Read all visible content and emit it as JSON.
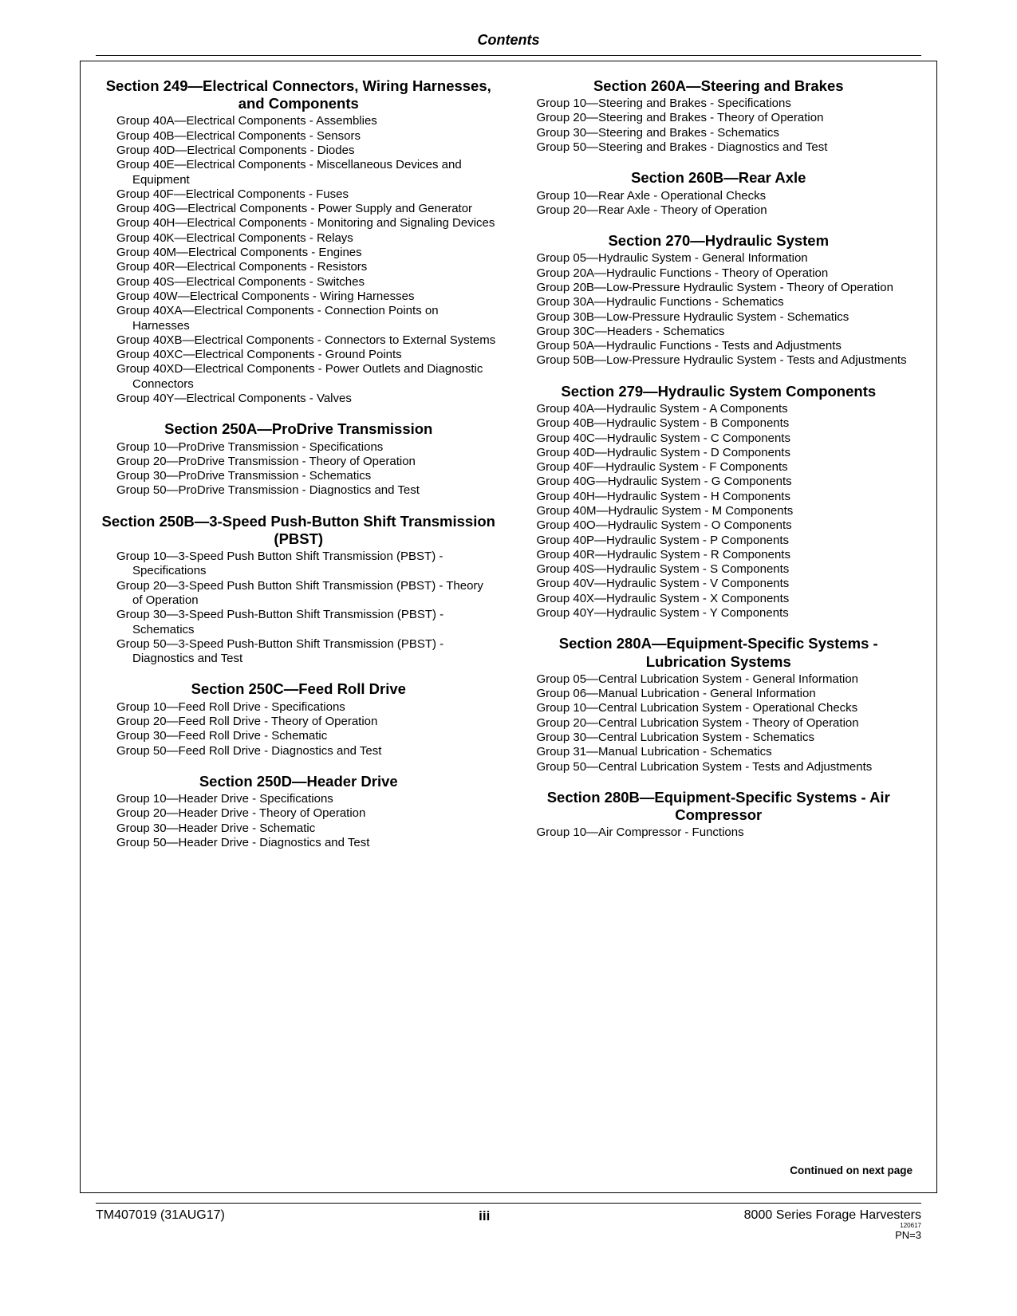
{
  "header": "Contents",
  "continued": "Continued on next page",
  "footer": {
    "left": "TM407019 (31AUG17)",
    "center": "iii",
    "right_main": "8000 Series Forage Harvesters",
    "right_tiny": "120617",
    "right_pn": "PN=3"
  },
  "left_sections": [
    {
      "title": "Section 249—Electrical Connectors, Wiring Harnesses, and Components",
      "groups": [
        "Group 40A—Electrical Components - Assemblies",
        "Group 40B—Electrical Components - Sensors",
        "Group 40D—Electrical Components - Diodes",
        "Group 40E—Electrical Components - Miscellaneous Devices and Equipment",
        "Group 40F—Electrical Components - Fuses",
        "Group 40G—Electrical Components - Power Supply and Generator",
        "Group 40H—Electrical Components - Monitoring and Signaling Devices",
        "Group 40K—Electrical Components - Relays",
        "Group 40M—Electrical Components - Engines",
        "Group 40R—Electrical Components - Resistors",
        "Group 40S—Electrical Components - Switches",
        "Group 40W—Electrical Components - Wiring Harnesses",
        "Group 40XA—Electrical Components - Connection Points on Harnesses",
        "Group 40XB—Electrical Components - Connectors to External Systems",
        "Group 40XC—Electrical Components - Ground Points",
        "Group 40XD—Electrical Components - Power Outlets and Diagnostic Connectors",
        "Group 40Y—Electrical Components - Valves"
      ]
    },
    {
      "title": "Section 250A—ProDrive Transmission",
      "groups": [
        "Group 10—ProDrive Transmission - Specifications",
        "Group 20—ProDrive Transmission - Theory of Operation",
        "Group 30—ProDrive Transmission - Schematics",
        "Group 50—ProDrive Transmission - Diagnostics and Test"
      ]
    },
    {
      "title": "Section 250B—3-Speed Push-Button Shift Transmission (PBST)",
      "groups": [
        "Group 10—3-Speed Push Button Shift Transmission (PBST) - Specifications",
        "Group 20—3-Speed Push Button Shift Transmission (PBST) - Theory of Operation",
        "Group 30—3-Speed Push-Button Shift Transmission (PBST) - Schematics",
        "Group 50—3-Speed Push-Button Shift Transmission (PBST) - Diagnostics and Test"
      ]
    },
    {
      "title": "Section 250C—Feed Roll Drive",
      "groups": [
        "Group 10—Feed Roll Drive - Specifications",
        "Group 20—Feed Roll Drive - Theory of Operation",
        "Group 30—Feed Roll Drive - Schematic",
        "Group 50—Feed Roll Drive - Diagnostics and Test"
      ]
    },
    {
      "title": "Section 250D—Header Drive",
      "groups": [
        "Group 10—Header Drive - Specifications",
        "Group 20—Header Drive - Theory of Operation",
        "Group 30—Header Drive - Schematic",
        "Group 50—Header Drive - Diagnostics and Test"
      ]
    }
  ],
  "right_sections": [
    {
      "title": "Section 260A—Steering and Brakes",
      "groups": [
        "Group 10—Steering and Brakes - Specifications",
        "Group 20—Steering and Brakes - Theory of Operation",
        "Group 30—Steering and Brakes - Schematics",
        "Group 50—Steering and Brakes - Diagnostics and Test"
      ]
    },
    {
      "title": "Section 260B—Rear Axle",
      "groups": [
        "Group 10—Rear Axle - Operational Checks",
        "Group 20—Rear Axle - Theory of Operation"
      ]
    },
    {
      "title": "Section 270—Hydraulic System",
      "groups": [
        "Group 05—Hydraulic System - General Information",
        "Group 20A—Hydraulic Functions - Theory of Operation",
        "Group 20B—Low-Pressure Hydraulic System - Theory of Operation",
        "Group 30A—Hydraulic Functions - Schematics",
        "Group 30B—Low-Pressure Hydraulic System - Schematics",
        "Group 30C—Headers - Schematics",
        "Group 50A—Hydraulic Functions - Tests and Adjustments",
        "Group 50B—Low-Pressure Hydraulic System - Tests and Adjustments"
      ]
    },
    {
      "title": "Section 279—Hydraulic System Components",
      "groups": [
        "Group 40A—Hydraulic System - A Components",
        "Group 40B—Hydraulic System - B Components",
        "Group 40C—Hydraulic System - C Components",
        "Group 40D—Hydraulic System - D Components",
        "Group 40F—Hydraulic System - F Components",
        "Group 40G—Hydraulic System - G Components",
        "Group 40H—Hydraulic System - H Components",
        "Group 40M—Hydraulic System - M Components",
        "Group 40O—Hydraulic System - O Components",
        "Group 40P—Hydraulic System - P Components",
        "Group 40R—Hydraulic System - R Components",
        "Group 40S—Hydraulic System - S Components",
        "Group 40V—Hydraulic System - V Components",
        "Group 40X—Hydraulic System - X Components",
        "Group 40Y—Hydraulic System - Y Components"
      ]
    },
    {
      "title": "Section 280A—Equipment-Specific Systems - Lubrication Systems",
      "groups": [
        "Group 05—Central Lubrication System - General Information",
        "Group 06—Manual Lubrication - General Information",
        "Group 10—Central Lubrication System - Operational Checks",
        "Group 20—Central Lubrication System - Theory of Operation",
        "Group 30—Central Lubrication System - Schematics",
        "Group 31—Manual Lubrication - Schematics",
        "Group 50—Central Lubrication System - Tests and Adjustments"
      ]
    },
    {
      "title": "Section 280B—Equipment-Specific Systems - Air Compressor",
      "groups": [
        "Group 10—Air Compressor - Functions"
      ]
    }
  ]
}
